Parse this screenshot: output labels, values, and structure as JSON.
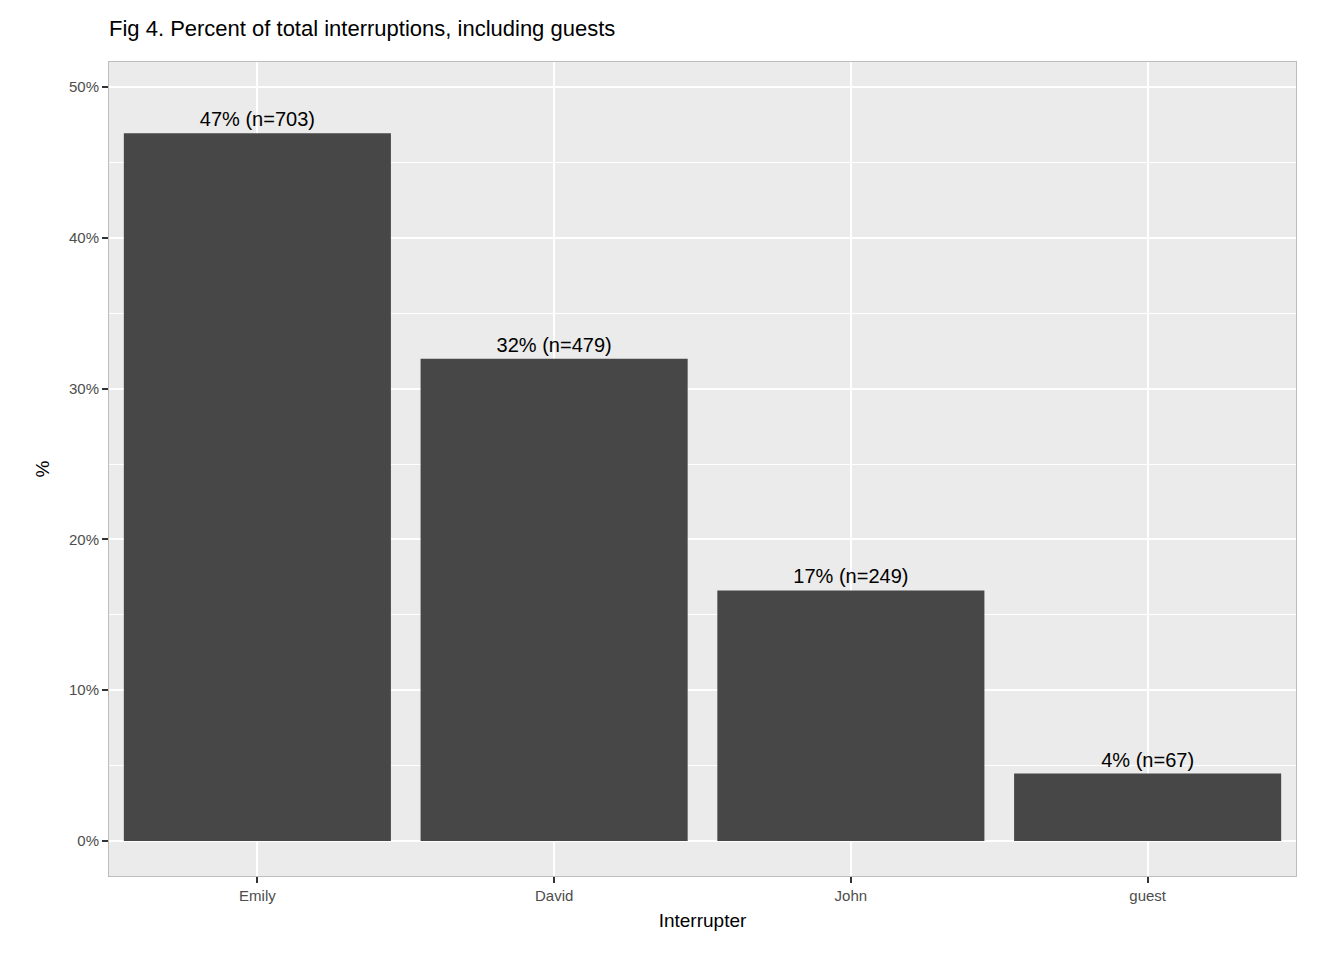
{
  "chart_data": {
    "type": "bar",
    "title": "Fig 4. Percent of total interruptions, including guests",
    "x_label": "Interrupter",
    "y_label": "%",
    "categories": [
      "Emily",
      "David",
      "John",
      "guest"
    ],
    "values": [
      46.93,
      31.98,
      16.62,
      4.47
    ],
    "value_labels": [
      "47% (n=703)",
      "32% (n=479)",
      "17% (n=249)",
      "4% (n=67)"
    ],
    "color": "#474747",
    "ylim": [
      -2.32,
      51.66
    ],
    "yticks": [
      {
        "value": 0,
        "label": "0%"
      },
      {
        "value": 10,
        "label": "10%"
      },
      {
        "value": 20,
        "label": "20%"
      },
      {
        "value": 30,
        "label": "30%"
      },
      {
        "value": 40,
        "label": "40%"
      },
      {
        "value": 50,
        "label": "50%"
      }
    ],
    "grid": true,
    "data_labels": true
  }
}
